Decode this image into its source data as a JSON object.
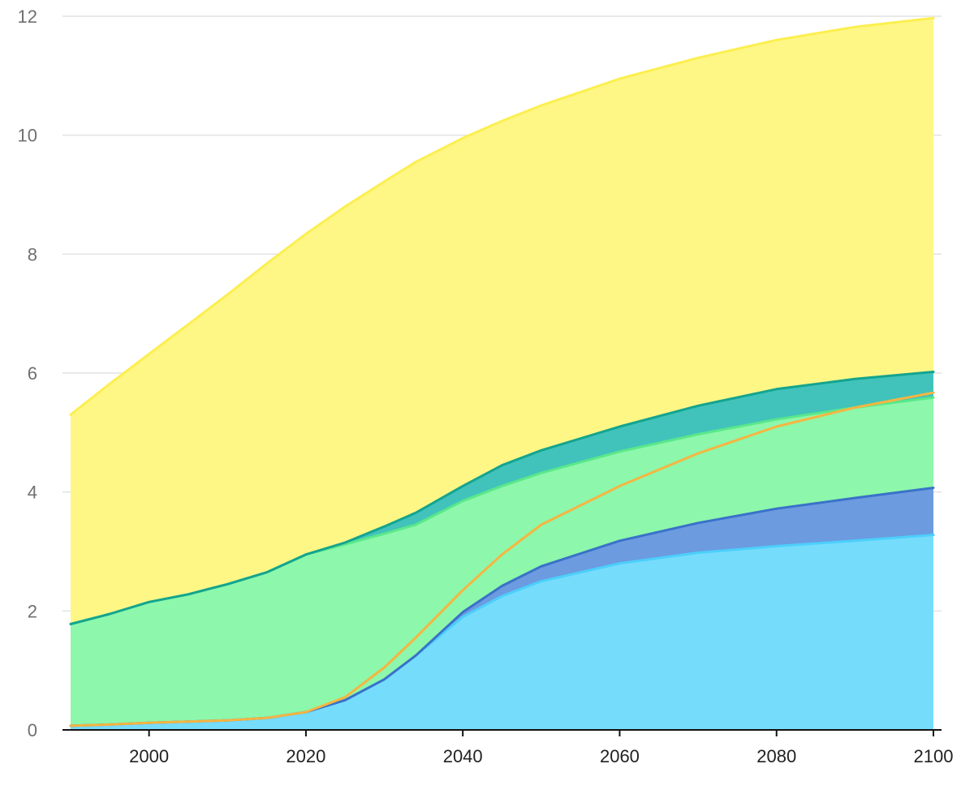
{
  "chart_data": {
    "type": "area",
    "stacked": true,
    "grid": true,
    "legend": "none",
    "title": "",
    "xlabel": "",
    "ylabel": "",
    "xlim": [
      1990,
      2100
    ],
    "ylim": [
      0,
      12
    ],
    "x": [
      1990,
      1995,
      2000,
      2005,
      2010,
      2015,
      2020,
      2025,
      2030,
      2034,
      2040,
      2045,
      2050,
      2060,
      2070,
      2080,
      2090,
      2100
    ],
    "x_ticks": [
      "2000",
      "2020",
      "2040",
      "2060",
      "2080",
      "2100"
    ],
    "x_tick_values": [
      2000,
      2020,
      2040,
      2060,
      2080,
      2100
    ],
    "y_ticks": [
      "0",
      "2",
      "4",
      "6",
      "8",
      "10",
      "12"
    ],
    "y_tick_values": [
      0,
      2,
      4,
      6,
      8,
      10,
      12
    ],
    "series": [
      {
        "color": "#76dcfc",
        "line_color": "#4ccffb",
        "cumulative": [
          0.07,
          0.09,
          0.12,
          0.14,
          0.16,
          0.2,
          0.3,
          0.5,
          0.85,
          1.25,
          1.9,
          2.25,
          2.5,
          2.8,
          2.98,
          3.09,
          3.18,
          3.28
        ]
      },
      {
        "color": "#6c9be0",
        "line_color": "#3a72c9",
        "cumulative": [
          0.07,
          0.09,
          0.12,
          0.14,
          0.16,
          0.2,
          0.3,
          0.5,
          0.85,
          1.25,
          1.98,
          2.42,
          2.75,
          3.18,
          3.48,
          3.72,
          3.9,
          4.07
        ]
      },
      {
        "color": "#8df7ab",
        "line_color": "#5ae88a",
        "cumulative": [
          1.78,
          1.95,
          2.15,
          2.28,
          2.45,
          2.65,
          2.95,
          3.12,
          3.3,
          3.45,
          3.85,
          4.1,
          4.32,
          4.68,
          4.97,
          5.22,
          5.42,
          5.59
        ]
      },
      {
        "color": "#41c3bb",
        "line_color": "#14a48f",
        "cumulative": [
          1.78,
          1.95,
          2.15,
          2.28,
          2.45,
          2.65,
          2.95,
          3.15,
          3.42,
          3.65,
          4.1,
          4.45,
          4.7,
          5.1,
          5.45,
          5.73,
          5.9,
          6.02
        ]
      },
      {
        "color": "#fef785",
        "line_color": "#fcef50",
        "cumulative": [
          5.3,
          5.82,
          6.32,
          6.82,
          7.32,
          7.84,
          8.34,
          8.8,
          9.22,
          9.55,
          9.95,
          10.24,
          10.5,
          10.95,
          11.3,
          11.6,
          11.82,
          11.97
        ]
      }
    ],
    "line_overlay": {
      "color": "#f6b541",
      "values": [
        0.07,
        0.09,
        0.12,
        0.14,
        0.16,
        0.2,
        0.3,
        0.55,
        1.05,
        1.55,
        2.35,
        2.95,
        3.45,
        4.1,
        4.65,
        5.1,
        5.42,
        5.67
      ]
    }
  }
}
